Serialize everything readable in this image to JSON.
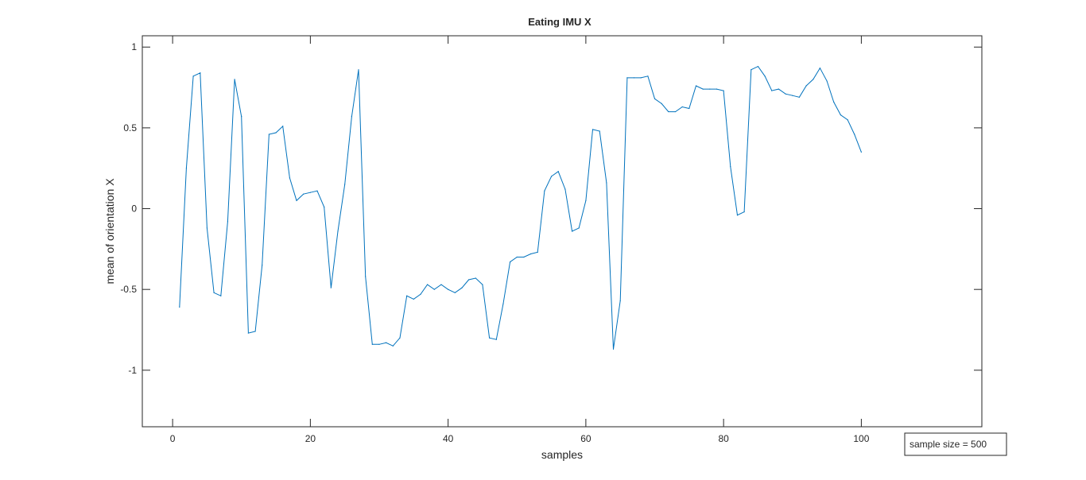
{
  "chart_data": {
    "type": "line",
    "title": "Eating IMU X",
    "xlabel": "samples",
    "ylabel": "mean of orientation X",
    "xlim": [
      -4.4,
      117.5
    ],
    "ylim": [
      -1.35,
      1.07
    ],
    "xticks": [
      0,
      20,
      40,
      60,
      80,
      100
    ],
    "xtick_labels": [
      "0",
      "20",
      "40",
      "60",
      "80",
      "100"
    ],
    "yticks": [
      -1,
      -0.5,
      0,
      0.5,
      1
    ],
    "ytick_labels": [
      "-1",
      "-0.5",
      "0",
      "0.5",
      "1"
    ],
    "grid": false,
    "line_color": "#0072bd",
    "annotation": "sample size = 500",
    "x": [
      1,
      2,
      3,
      4,
      5,
      6,
      7,
      8,
      9,
      10,
      11,
      12,
      13,
      14,
      15,
      16,
      17,
      18,
      19,
      20,
      21,
      22,
      23,
      24,
      25,
      26,
      27,
      28,
      29,
      30,
      31,
      32,
      33,
      34,
      35,
      36,
      37,
      38,
      39,
      40,
      41,
      42,
      43,
      44,
      45,
      46,
      47,
      48,
      49,
      50,
      51,
      52,
      53,
      54,
      55,
      56,
      57,
      58,
      59,
      60,
      61,
      62,
      63,
      64,
      65,
      66,
      67,
      68,
      69,
      70,
      71,
      72,
      73,
      74,
      75,
      76,
      77,
      78,
      79,
      80,
      81,
      82,
      83,
      84,
      85,
      86,
      87,
      88,
      89,
      90,
      91,
      92,
      93,
      94,
      95,
      96,
      97,
      98,
      99,
      100
    ],
    "y": [
      -0.61,
      0.25,
      0.82,
      0.84,
      -0.12,
      -0.52,
      -0.54,
      -0.08,
      0.8,
      0.57,
      -0.77,
      -0.76,
      -0.35,
      0.46,
      0.47,
      0.51,
      0.19,
      0.05,
      0.09,
      0.1,
      0.11,
      0.01,
      -0.49,
      -0.14,
      0.15,
      0.57,
      0.86,
      -0.42,
      -0.84,
      -0.84,
      -0.83,
      -0.85,
      -0.8,
      -0.54,
      -0.56,
      -0.53,
      -0.47,
      -0.5,
      -0.47,
      -0.5,
      -0.52,
      -0.49,
      -0.44,
      -0.43,
      -0.47,
      -0.8,
      -0.81,
      -0.59,
      -0.33,
      -0.3,
      -0.3,
      -0.28,
      -0.27,
      0.11,
      0.2,
      0.23,
      0.12,
      -0.14,
      -0.12,
      0.05,
      0.49,
      0.48,
      0.16,
      -0.87,
      -0.57,
      0.81,
      0.81,
      0.81,
      0.82,
      0.68,
      0.65,
      0.6,
      0.6,
      0.63,
      0.62,
      0.76,
      0.74,
      0.74,
      0.74,
      0.73,
      0.26,
      -0.04,
      -0.02,
      0.86,
      0.88,
      0.82,
      0.73,
      0.74,
      0.71,
      0.7,
      0.69,
      0.76,
      0.8,
      0.87,
      0.79,
      0.66,
      0.58,
      0.55,
      0.46,
      0.35
    ]
  }
}
